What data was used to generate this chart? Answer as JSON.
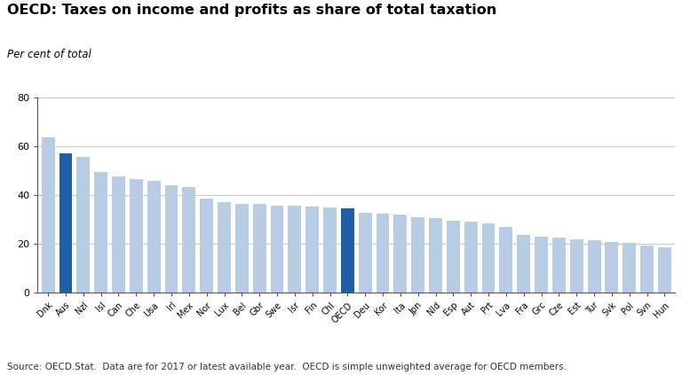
{
  "title": "OECD: Taxes on income and profits as share of total taxation",
  "ylabel": "Per cent of total",
  "source": "Source: OECD.Stat.  Data are for 2017 or latest available year.  OECD is simple unweighted average for OECD members.",
  "categories": [
    "Dnk",
    "Aus",
    "Nzl",
    "Isl",
    "Can",
    "Che",
    "Usa",
    "Irl",
    "Mex",
    "Nor",
    "Lux",
    "Bel",
    "Gbr",
    "Swe",
    "Isr",
    "Fin",
    "Chl",
    "OECD",
    "Deu",
    "Kor",
    "Ita",
    "Jpn",
    "Nld",
    "Esp",
    "Aut",
    "Prt",
    "Lva",
    "Fra",
    "Grc",
    "Cze",
    "Est",
    "Tur",
    "Svk",
    "Pol",
    "Svn",
    "Hun"
  ],
  "values": [
    63.5,
    57.2,
    55.5,
    49.5,
    47.5,
    46.5,
    45.8,
    44.0,
    43.3,
    38.5,
    37.2,
    36.5,
    36.2,
    35.8,
    35.5,
    35.2,
    34.8,
    34.5,
    32.8,
    32.5,
    32.0,
    30.8,
    30.5,
    29.5,
    29.0,
    28.5,
    27.0,
    23.8,
    23.0,
    22.5,
    21.8,
    21.3,
    20.8,
    20.2,
    19.2,
    18.5
  ],
  "highlight_indices": [
    1,
    17
  ],
  "highlight_color": "#1f5fa6",
  "normal_color": "#b8cce4",
  "ylim": [
    0,
    80
  ],
  "yticks": [
    0,
    20,
    40,
    60,
    80
  ],
  "background_color": "#ffffff",
  "grid_color": "#bbbbbb",
  "title_fontsize": 11.5,
  "ylabel_fontsize": 8.5,
  "tick_fontsize": 8,
  "xtick_fontsize": 7,
  "source_fontsize": 7.5
}
